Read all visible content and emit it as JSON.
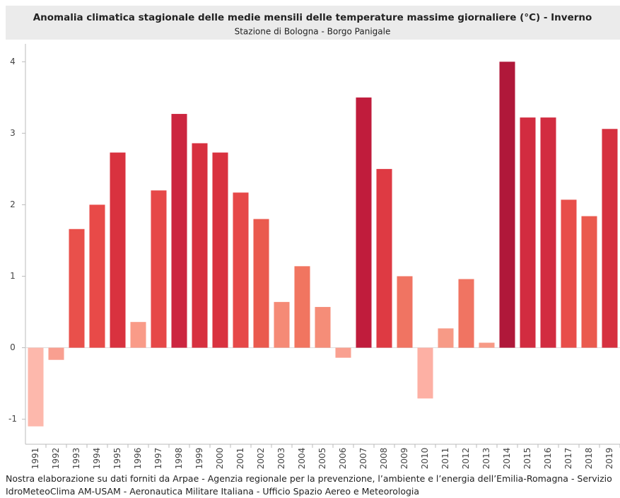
{
  "chart_data": {
    "type": "bar",
    "title": "Anomalia climatica stagionale delle medie mensili delle temperature massime giornaliere (°C) - Inverno",
    "subtitle": "Stazione di Bologna - Borgo Panigale",
    "categories": [
      "1991",
      "1992",
      "1993",
      "1994",
      "1995",
      "1996",
      "1997",
      "1998",
      "1999",
      "2000",
      "2001",
      "2002",
      "2003",
      "2004",
      "2005",
      "2006",
      "2007",
      "2008",
      "2009",
      "2010",
      "2011",
      "2012",
      "2013",
      "2014",
      "2015",
      "2016",
      "2017",
      "2018",
      "2019"
    ],
    "values": [
      -1.1,
      -0.17,
      1.66,
      2.0,
      2.73,
      0.36,
      2.2,
      3.27,
      2.86,
      2.73,
      2.17,
      1.8,
      0.64,
      1.14,
      0.57,
      -0.14,
      3.5,
      2.5,
      1.0,
      -0.71,
      0.27,
      0.96,
      0.07,
      4.0,
      3.22,
      3.22,
      2.07,
      1.84,
      3.06
    ],
    "colors": [
      "#fdb8ac",
      "#f99f90",
      "#e9504b",
      "#e84a48",
      "#d9323f",
      "#f99b88",
      "#e64848",
      "#cc2640",
      "#d7303f",
      "#d9323f",
      "#e64848",
      "#ea5a4e",
      "#f58a76",
      "#f17560",
      "#f58d78",
      "#f9a090",
      "#c01c3c",
      "#de3a43",
      "#f07462",
      "#fdb0a4",
      "#f79a86",
      "#f07462",
      "#f79a86",
      "#b0183a",
      "#d22c40",
      "#d22c40",
      "#e84e4a",
      "#ea5a4e",
      "#d6303f"
    ],
    "ylim": [
      -1.35,
      4.25
    ],
    "yticks": [
      -1,
      0,
      1,
      2,
      3,
      4
    ],
    "footer": [
      "Nostra elaborazione su dati forniti da Arpae - Agenzia regionale per la prevenzione, l’ambiente e l’energia dell’Emilia-Romagna - Servizio",
      "IdroMeteoClima AM-USAM - Aeronautica Militare Italiana - Ufficio Spazio Aereo e Meteorologia"
    ]
  }
}
